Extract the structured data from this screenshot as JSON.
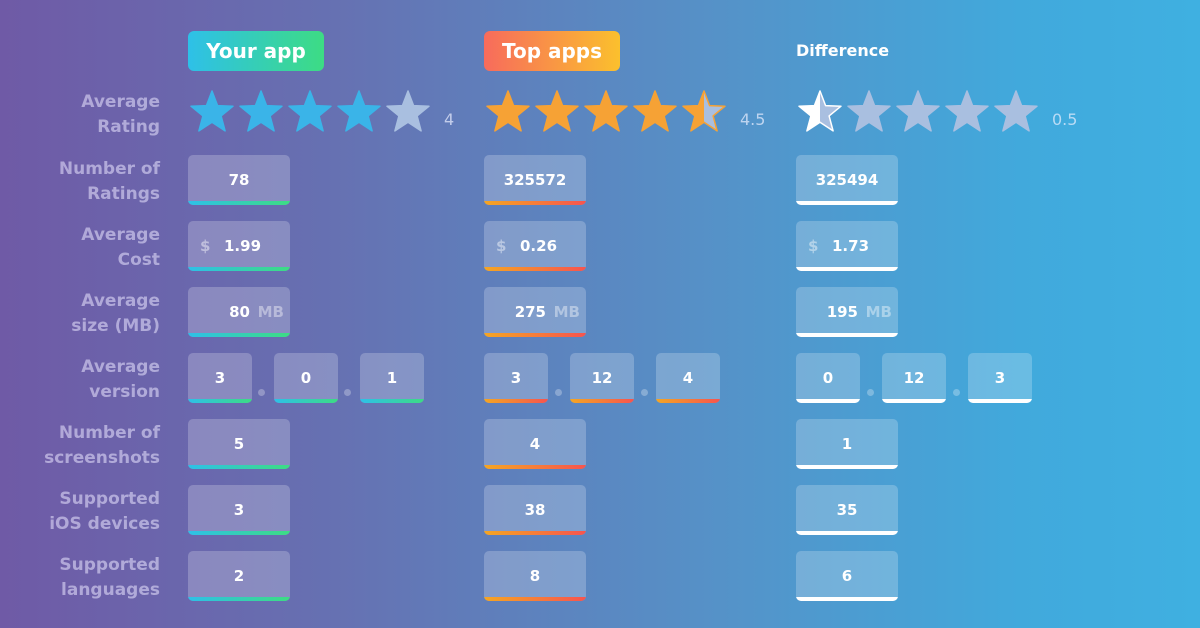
{
  "headers": {
    "your_app": "Your app",
    "top_apps": "Top apps",
    "difference": "Difference"
  },
  "labels": {
    "average_rating": [
      "Average",
      "Rating"
    ],
    "number_of_ratings": [
      "Number of",
      "Ratings"
    ],
    "average_cost": [
      "Average",
      "Cost"
    ],
    "average_size": [
      "Average",
      "size (MB)"
    ],
    "average_version": [
      "Average",
      "version"
    ],
    "number_of_screenshots": [
      "Number of",
      "screenshots"
    ],
    "supported_ios_devices": [
      "Supported",
      "iOS devices"
    ],
    "supported_languages": [
      "Supported",
      "languages"
    ]
  },
  "your_app": {
    "rating": "4",
    "rating_value": 4,
    "ratings_count": "78",
    "cost_currency": "$",
    "cost": "1.99",
    "size": "80",
    "size_unit": "MB",
    "version": [
      "3",
      "0",
      "1"
    ],
    "screenshots": "5",
    "ios_devices": "3",
    "languages": "2"
  },
  "top_apps": {
    "rating": "4.5",
    "rating_value": 4.5,
    "ratings_count": "325572",
    "cost_currency": "$",
    "cost": "0.26",
    "size": "275",
    "size_unit": "MB",
    "version": [
      "3",
      "12",
      "4"
    ],
    "screenshots": "4",
    "ios_devices": "38",
    "languages": "8"
  },
  "difference": {
    "rating": "0.5",
    "rating_value": 0.5,
    "ratings_count": "325494",
    "cost_currency": "$",
    "cost": "1.73",
    "size": "195",
    "size_unit": "MB",
    "version": [
      "0",
      "12",
      "3"
    ],
    "screenshots": "1",
    "ios_devices": "35",
    "languages": "6"
  },
  "colors": {
    "your_app_stars": "#3ab4e8",
    "top_apps_stars": "#f6a235",
    "difference_stars": "#ffffff",
    "empty_star": "#a9bfe0"
  },
  "icons": [
    "star-icon"
  ]
}
